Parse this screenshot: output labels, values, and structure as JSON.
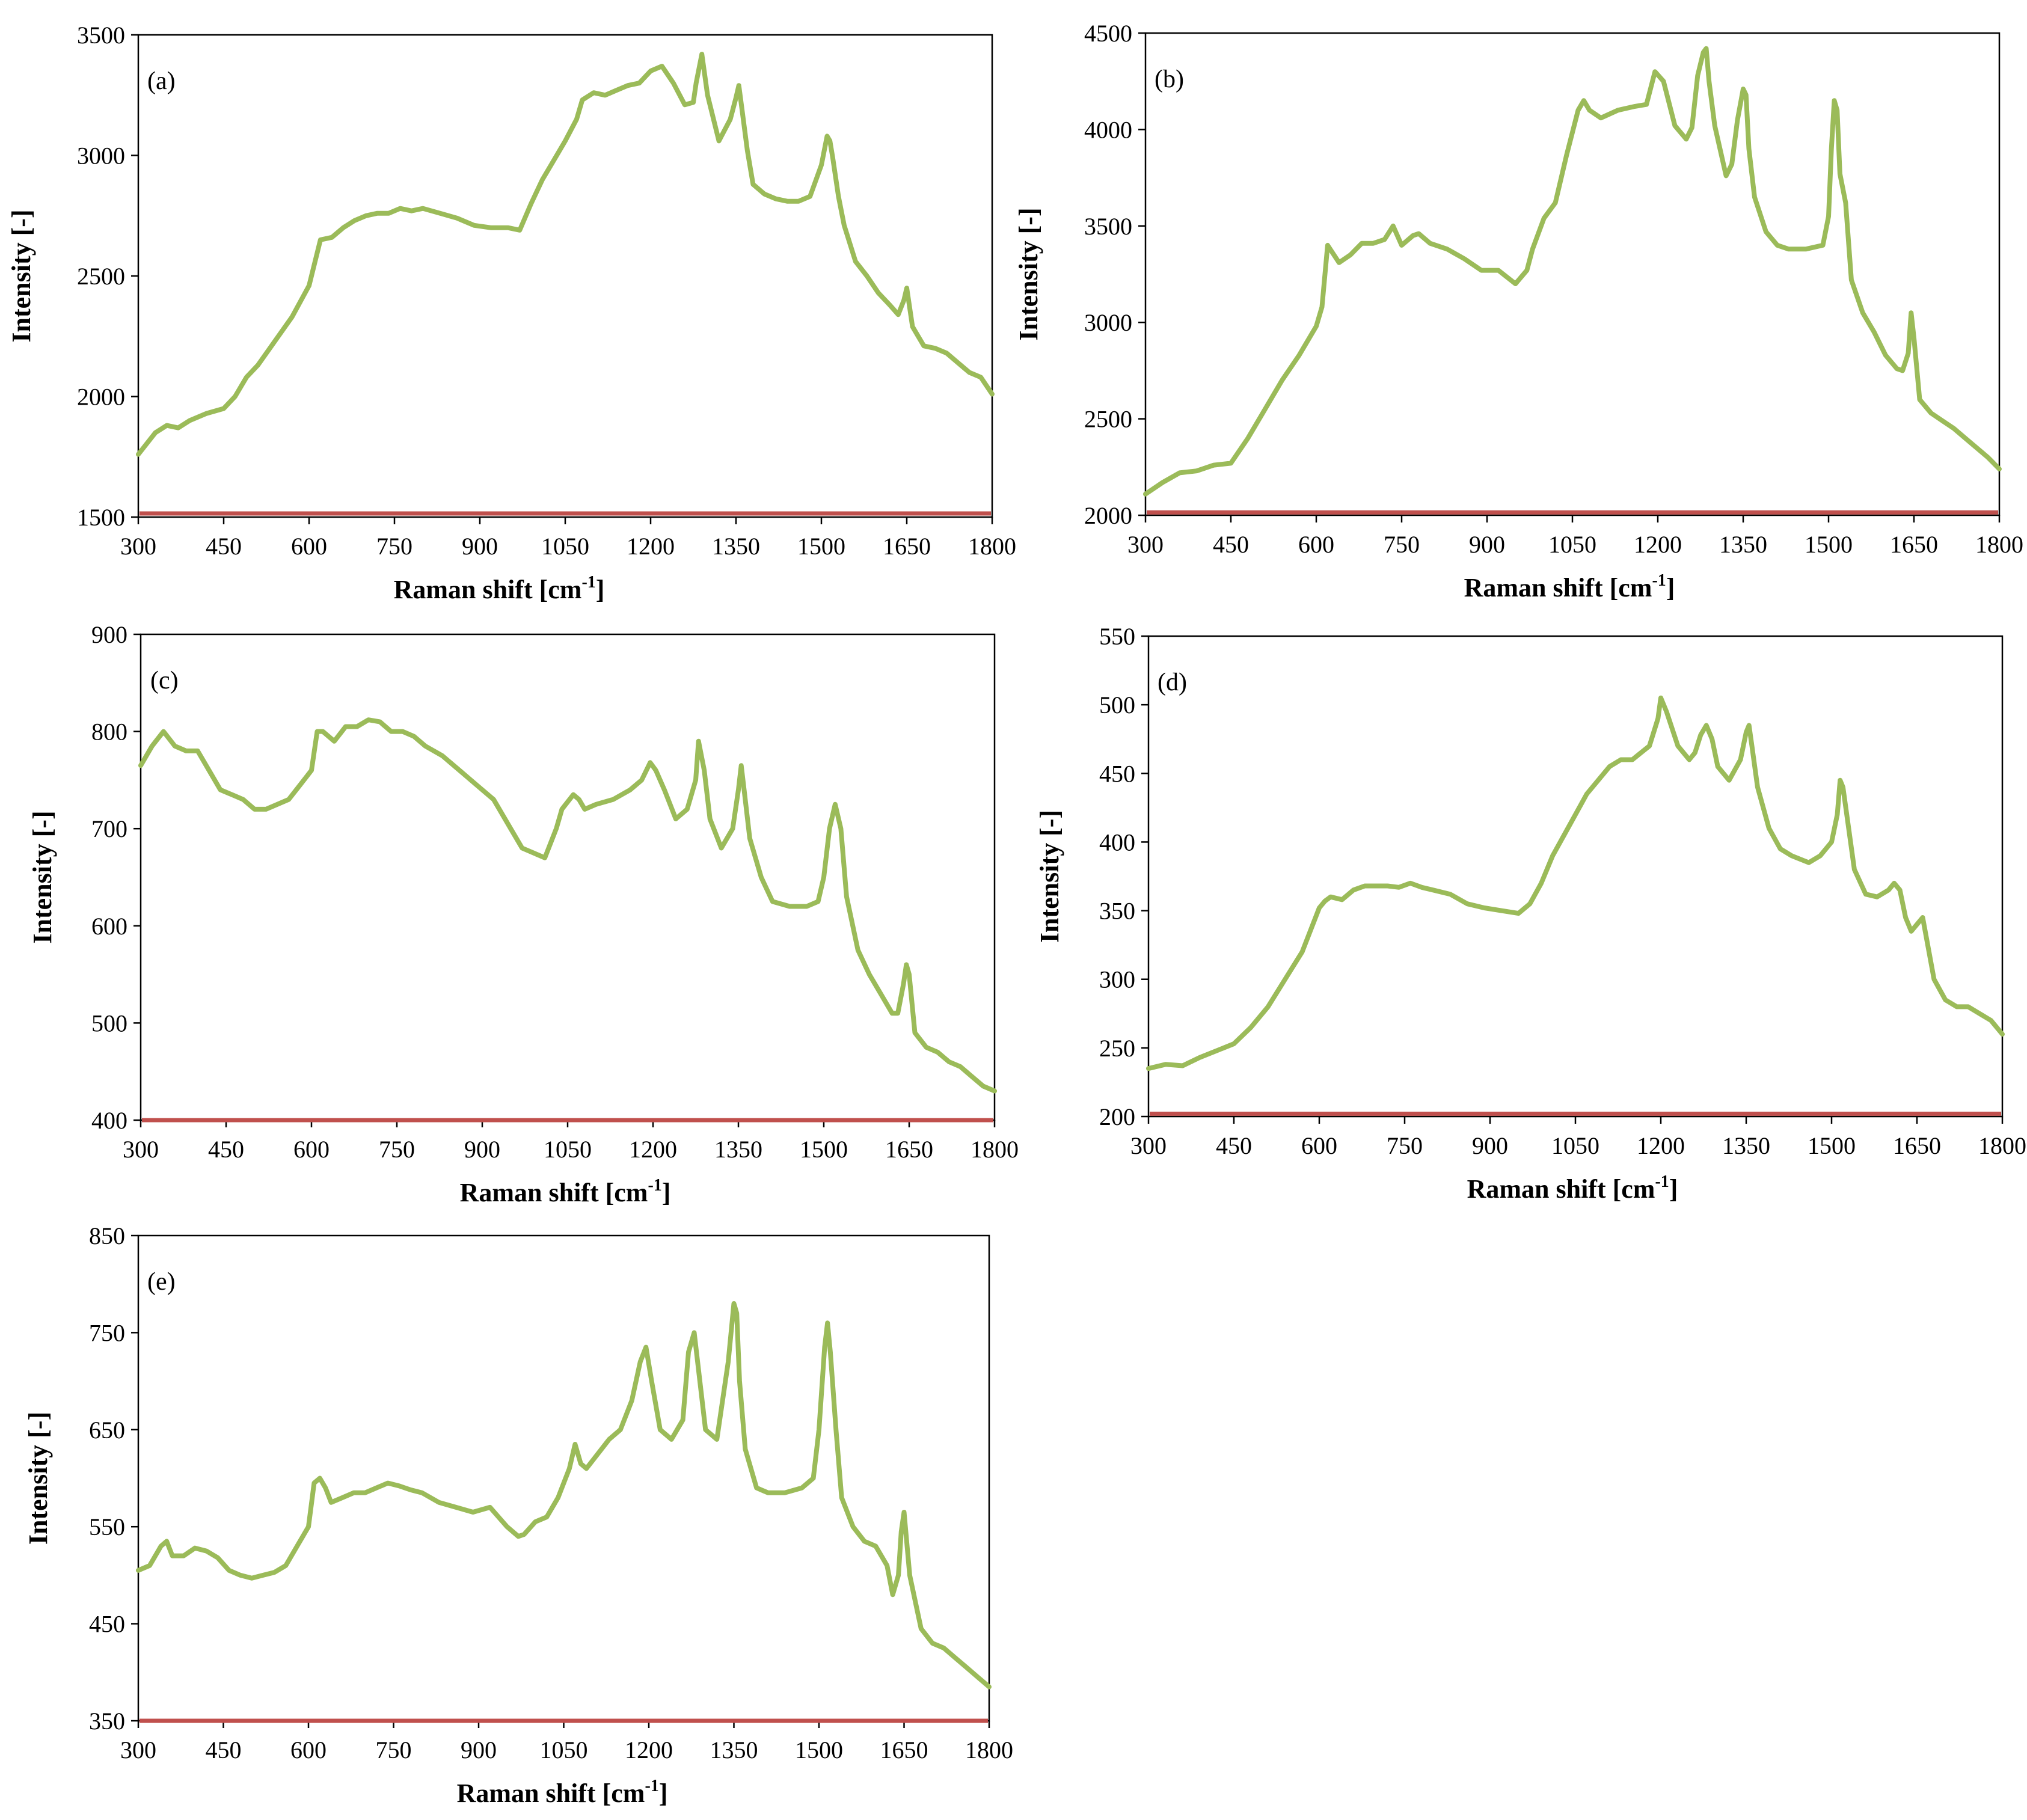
{
  "colors": {
    "spectrum": "#9bbb59",
    "baseline": "#c0504d",
    "frame": "#000000",
    "background": "#ffffff"
  },
  "chart_data": [
    {
      "type": "line",
      "panel": "(a)",
      "xlabel": "Raman shift [cm-1]",
      "xlabel_main": "Raman  shift [cm",
      "xlabel_sup": "-1",
      "xlabel_close": "]",
      "ylabel": "Intensity [-]",
      "xlim": [
        300,
        1800
      ],
      "ylim": [
        1500,
        3500
      ],
      "xticks": [
        300,
        450,
        600,
        750,
        900,
        1050,
        1200,
        1350,
        1500,
        1650,
        1800
      ],
      "yticks": [
        1500,
        2000,
        2500,
        3000,
        3500
      ],
      "grid": false,
      "baseline": 1515,
      "series": [
        {
          "name": "spectrum",
          "x": [
            300,
            330,
            350,
            370,
            390,
            420,
            450,
            470,
            490,
            510,
            540,
            570,
            600,
            620,
            640,
            660,
            680,
            700,
            720,
            740,
            760,
            780,
            800,
            830,
            860,
            890,
            920,
            950,
            970,
            990,
            1010,
            1030,
            1050,
            1070,
            1080,
            1100,
            1120,
            1140,
            1160,
            1180,
            1200,
            1220,
            1240,
            1260,
            1275,
            1280,
            1290,
            1300,
            1320,
            1340,
            1350,
            1355,
            1360,
            1370,
            1380,
            1400,
            1420,
            1440,
            1460,
            1480,
            1500,
            1510,
            1515,
            1520,
            1530,
            1540,
            1560,
            1580,
            1600,
            1620,
            1635,
            1645,
            1650,
            1660,
            1680,
            1700,
            1720,
            1740,
            1760,
            1780,
            1800
          ],
          "y": [
            1760,
            1850,
            1880,
            1870,
            1900,
            1930,
            1950,
            2000,
            2080,
            2130,
            2230,
            2330,
            2460,
            2650,
            2660,
            2700,
            2730,
            2750,
            2760,
            2760,
            2780,
            2770,
            2780,
            2760,
            2740,
            2710,
            2700,
            2700,
            2690,
            2800,
            2900,
            2980,
            3060,
            3150,
            3230,
            3260,
            3250,
            3270,
            3290,
            3300,
            3350,
            3370,
            3300,
            3210,
            3220,
            3300,
            3420,
            3250,
            3060,
            3150,
            3240,
            3290,
            3200,
            3020,
            2880,
            2840,
            2820,
            2810,
            2810,
            2830,
            2960,
            3080,
            3060,
            2990,
            2830,
            2710,
            2560,
            2500,
            2430,
            2380,
            2340,
            2400,
            2450,
            2290,
            2210,
            2200,
            2180,
            2140,
            2100,
            2080,
            2010
          ]
        }
      ]
    },
    {
      "type": "line",
      "panel": "(b)",
      "xlabel": "Raman shift [cm-1]",
      "xlabel_main": "Raman  shift [cm",
      "xlabel_sup": "-1",
      "xlabel_close": "]",
      "ylabel": "Intensity [-]",
      "xlim": [
        300,
        1800
      ],
      "ylim": [
        2000,
        4500
      ],
      "xticks": [
        300,
        450,
        600,
        750,
        900,
        1050,
        1200,
        1350,
        1500,
        1650,
        1800
      ],
      "yticks": [
        2000,
        2500,
        3000,
        3500,
        4000,
        4500
      ],
      "grid": false,
      "baseline": 2015,
      "series": [
        {
          "name": "spectrum",
          "x": [
            300,
            330,
            360,
            390,
            420,
            450,
            480,
            510,
            540,
            570,
            600,
            610,
            620,
            640,
            660,
            680,
            700,
            720,
            735,
            750,
            770,
            780,
            800,
            830,
            860,
            890,
            920,
            950,
            970,
            980,
            1000,
            1020,
            1040,
            1060,
            1070,
            1080,
            1100,
            1130,
            1160,
            1180,
            1195,
            1210,
            1230,
            1250,
            1260,
            1270,
            1280,
            1285,
            1290,
            1300,
            1320,
            1330,
            1340,
            1350,
            1355,
            1360,
            1370,
            1390,
            1410,
            1430,
            1460,
            1490,
            1500,
            1505,
            1510,
            1515,
            1520,
            1530,
            1540,
            1560,
            1580,
            1600,
            1620,
            1630,
            1640,
            1645,
            1650,
            1660,
            1680,
            1700,
            1720,
            1740,
            1760,
            1780,
            1800
          ],
          "y": [
            2110,
            2170,
            2220,
            2230,
            2260,
            2270,
            2400,
            2550,
            2700,
            2830,
            2980,
            3080,
            3400,
            3310,
            3350,
            3410,
            3410,
            3430,
            3500,
            3400,
            3450,
            3460,
            3410,
            3380,
            3330,
            3270,
            3270,
            3200,
            3270,
            3380,
            3540,
            3620,
            3870,
            4100,
            4150,
            4100,
            4060,
            4100,
            4120,
            4130,
            4300,
            4250,
            4020,
            3950,
            4010,
            4280,
            4400,
            4420,
            4250,
            4020,
            3760,
            3820,
            4050,
            4210,
            4180,
            3900,
            3650,
            3470,
            3400,
            3380,
            3380,
            3400,
            3550,
            3900,
            4150,
            4100,
            3770,
            3620,
            3220,
            3050,
            2950,
            2830,
            2760,
            2750,
            2840,
            3050,
            2920,
            2600,
            2530,
            2490,
            2450,
            2400,
            2350,
            2300,
            2240
          ]
        }
      ]
    },
    {
      "type": "line",
      "panel": "(c)",
      "xlabel": "Raman shift [cm-1]",
      "xlabel_main": "Raman  shift [cm",
      "xlabel_sup": "-1",
      "xlabel_close": "]",
      "ylabel": "Intensity [-]",
      "xlim": [
        300,
        1800
      ],
      "ylim": [
        400,
        900
      ],
      "xticks": [
        300,
        450,
        600,
        750,
        900,
        1050,
        1200,
        1350,
        1500,
        1650,
        1800
      ],
      "yticks": [
        400,
        500,
        600,
        700,
        800,
        900
      ],
      "grid": false,
      "baseline": 400,
      "series": [
        {
          "name": "spectrum",
          "x": [
            300,
            320,
            340,
            360,
            380,
            400,
            420,
            440,
            460,
            480,
            500,
            520,
            540,
            560,
            580,
            600,
            610,
            620,
            640,
            660,
            680,
            700,
            720,
            740,
            760,
            780,
            800,
            830,
            860,
            890,
            920,
            950,
            970,
            990,
            1010,
            1030,
            1040,
            1060,
            1070,
            1080,
            1100,
            1130,
            1160,
            1180,
            1195,
            1205,
            1220,
            1240,
            1260,
            1275,
            1280,
            1290,
            1300,
            1320,
            1340,
            1350,
            1355,
            1360,
            1370,
            1390,
            1410,
            1440,
            1470,
            1490,
            1500,
            1510,
            1520,
            1530,
            1540,
            1560,
            1580,
            1600,
            1620,
            1630,
            1640,
            1645,
            1650,
            1660,
            1680,
            1700,
            1720,
            1740,
            1760,
            1780,
            1800
          ],
          "y": [
            765,
            785,
            800,
            785,
            780,
            780,
            760,
            740,
            735,
            730,
            720,
            720,
            725,
            730,
            745,
            760,
            800,
            800,
            790,
            805,
            805,
            812,
            810,
            800,
            800,
            795,
            785,
            775,
            760,
            745,
            730,
            700,
            680,
            675,
            670,
            700,
            720,
            735,
            730,
            720,
            725,
            730,
            740,
            750,
            768,
            760,
            740,
            710,
            720,
            750,
            790,
            760,
            710,
            680,
            700,
            740,
            765,
            740,
            690,
            650,
            625,
            620,
            620,
            625,
            650,
            700,
            725,
            700,
            630,
            575,
            550,
            530,
            510,
            510,
            540,
            560,
            550,
            490,
            475,
            470,
            460,
            455,
            445,
            435,
            430
          ]
        }
      ]
    },
    {
      "type": "line",
      "panel": "(d)",
      "xlabel": "Raman shift [cm-1]",
      "xlabel_main": "Raman  shift [cm",
      "xlabel_sup": "-1",
      "xlabel_close": "]",
      "ylabel": "Intensity [-]",
      "xlim": [
        300,
        1800
      ],
      "ylim": [
        200,
        550
      ],
      "xticks": [
        300,
        450,
        600,
        750,
        900,
        1050,
        1200,
        1350,
        1500,
        1650,
        1800
      ],
      "yticks": [
        200,
        250,
        300,
        350,
        400,
        450,
        500,
        550
      ],
      "grid": false,
      "baseline": 202,
      "series": [
        {
          "name": "spectrum",
          "x": [
            300,
            330,
            360,
            390,
            420,
            450,
            480,
            510,
            540,
            570,
            600,
            610,
            620,
            640,
            660,
            680,
            700,
            720,
            740,
            760,
            780,
            800,
            830,
            860,
            890,
            920,
            950,
            970,
            990,
            1010,
            1030,
            1050,
            1070,
            1090,
            1110,
            1130,
            1150,
            1165,
            1180,
            1195,
            1200,
            1210,
            1230,
            1250,
            1260,
            1270,
            1280,
            1290,
            1300,
            1320,
            1340,
            1350,
            1355,
            1360,
            1370,
            1390,
            1410,
            1430,
            1460,
            1480,
            1500,
            1510,
            1515,
            1520,
            1530,
            1540,
            1560,
            1580,
            1600,
            1610,
            1620,
            1630,
            1640,
            1650,
            1660,
            1680,
            1700,
            1720,
            1740,
            1760,
            1780,
            1800
          ],
          "y": [
            235,
            238,
            237,
            243,
            248,
            253,
            265,
            280,
            300,
            320,
            352,
            357,
            360,
            358,
            365,
            368,
            368,
            368,
            367,
            370,
            367,
            365,
            362,
            355,
            352,
            350,
            348,
            355,
            370,
            390,
            405,
            420,
            435,
            445,
            455,
            460,
            460,
            465,
            470,
            490,
            505,
            495,
            470,
            460,
            465,
            478,
            485,
            475,
            455,
            445,
            460,
            480,
            485,
            470,
            440,
            410,
            395,
            390,
            385,
            390,
            400,
            420,
            445,
            440,
            410,
            380,
            362,
            360,
            365,
            370,
            365,
            345,
            335,
            340,
            345,
            300,
            285,
            280,
            280,
            275,
            270,
            260
          ]
        }
      ]
    },
    {
      "type": "line",
      "panel": "(e)",
      "xlabel": "Raman shift [cm-1]",
      "xlabel_main": "Raman  shift [cm",
      "xlabel_sup": "-1",
      "xlabel_close": "]",
      "ylabel": "Intensity [-]",
      "xlim": [
        300,
        1800
      ],
      "ylim": [
        350,
        850
      ],
      "xticks": [
        300,
        450,
        600,
        750,
        900,
        1050,
        1200,
        1350,
        1500,
        1650,
        1800
      ],
      "yticks": [
        350,
        450,
        550,
        650,
        750,
        850
      ],
      "grid": false,
      "baseline": 350,
      "series": [
        {
          "name": "spectrum",
          "x": [
            300,
            320,
            340,
            350,
            360,
            380,
            400,
            420,
            440,
            460,
            480,
            500,
            520,
            540,
            560,
            580,
            600,
            610,
            620,
            630,
            640,
            660,
            680,
            700,
            720,
            740,
            760,
            780,
            800,
            830,
            860,
            890,
            920,
            950,
            970,
            980,
            1000,
            1020,
            1040,
            1060,
            1070,
            1080,
            1090,
            1110,
            1130,
            1150,
            1170,
            1185,
            1195,
            1205,
            1220,
            1240,
            1260,
            1270,
            1280,
            1290,
            1300,
            1320,
            1340,
            1350,
            1355,
            1360,
            1370,
            1390,
            1410,
            1440,
            1470,
            1490,
            1500,
            1510,
            1515,
            1520,
            1530,
            1540,
            1560,
            1580,
            1600,
            1620,
            1630,
            1640,
            1645,
            1650,
            1660,
            1680,
            1700,
            1720,
            1740,
            1760,
            1780,
            1800
          ],
          "y": [
            505,
            510,
            530,
            535,
            520,
            520,
            528,
            525,
            518,
            505,
            500,
            497,
            500,
            503,
            510,
            530,
            550,
            595,
            600,
            590,
            575,
            580,
            585,
            585,
            590,
            595,
            592,
            588,
            585,
            575,
            570,
            565,
            570,
            550,
            540,
            542,
            555,
            560,
            580,
            610,
            635,
            615,
            610,
            625,
            640,
            650,
            680,
            720,
            735,
            700,
            650,
            640,
            660,
            730,
            750,
            700,
            650,
            640,
            720,
            780,
            770,
            700,
            630,
            590,
            585,
            585,
            590,
            600,
            650,
            735,
            760,
            730,
            650,
            580,
            550,
            535,
            530,
            510,
            480,
            500,
            545,
            565,
            500,
            445,
            430,
            425,
            415,
            405,
            395,
            385
          ]
        }
      ]
    }
  ]
}
